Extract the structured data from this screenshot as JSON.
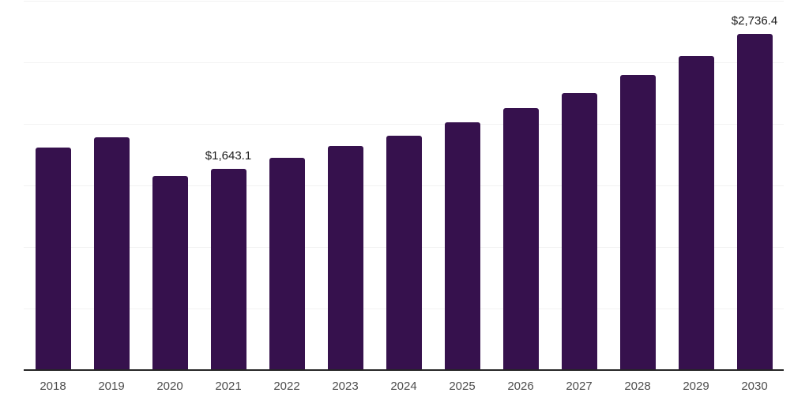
{
  "chart_data": {
    "type": "bar",
    "title": "",
    "xlabel": "",
    "ylabel": "",
    "categories": [
      "2018",
      "2019",
      "2020",
      "2021",
      "2022",
      "2023",
      "2024",
      "2025",
      "2026",
      "2027",
      "2028",
      "2029",
      "2030"
    ],
    "values": [
      1815.0,
      1898.0,
      1584.0,
      1643.1,
      1731.0,
      1826.0,
      1910.0,
      2019.0,
      2134.0,
      2256.0,
      2403.0,
      2557.0,
      2736.4
    ],
    "data_labels": {
      "2021": "$1,643.1",
      "2030": "$2,736.4"
    },
    "ylim": [
      0,
      3000
    ],
    "grid_step": 500,
    "grid": true,
    "legend": false,
    "colors": {
      "bar": "#36114D",
      "background": "#ffffff",
      "gridline": "#f2f2f2",
      "axis_line": "#262626",
      "tick_label": "#4d4d4d",
      "data_label": "#1a1a1a"
    }
  }
}
